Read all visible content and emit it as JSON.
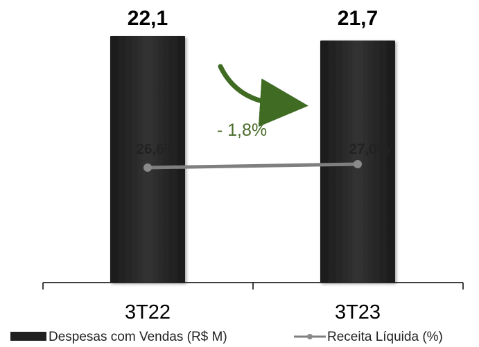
{
  "chart_data": {
    "type": "bar",
    "categories": [
      "3T22",
      "3T23"
    ],
    "series": [
      {
        "name": "Despesas com Vendas (R$ M)",
        "type": "bar",
        "values": [
          22.1,
          21.7
        ],
        "labels": [
          "22,1",
          "21,7"
        ],
        "color": "#2a2a2a"
      },
      {
        "name": "Receita Líquida (%)",
        "type": "line",
        "values": [
          26.6,
          27.0
        ],
        "labels": [
          "26,6%",
          "27,0%"
        ],
        "color": "#808080"
      }
    ],
    "annotation": {
      "text": "- 1,8%",
      "color": "#4a6b2a"
    },
    "legend": {
      "position": "bottom",
      "items": [
        "Despesas com Vendas (R$ M)",
        "Receita Líquida (%)"
      ]
    },
    "grid": false
  }
}
